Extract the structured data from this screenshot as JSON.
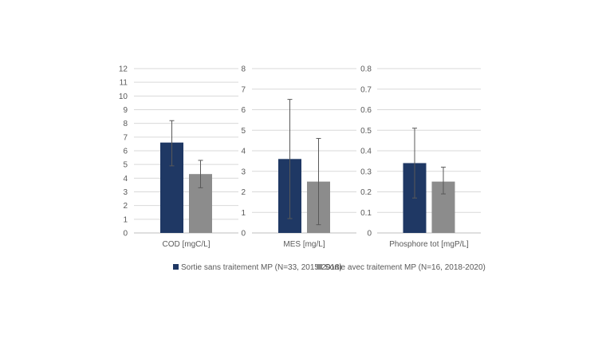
{
  "legend": {
    "position": "bottom",
    "items": [
      {
        "label": "Sortie sans traitement MP (N=33, 2015-2018)",
        "color": "#1f3864"
      },
      {
        "label": "Sortie avec traitement MP (N=16, 2018-2020)",
        "color": "#8c8c8c"
      }
    ]
  },
  "chart_data": [
    {
      "type": "bar",
      "xlabel": "COD [mgC/L]",
      "ylim": [
        0,
        12
      ],
      "yticks": [
        0,
        1,
        2,
        3,
        4,
        5,
        6,
        7,
        8,
        9,
        10,
        11,
        12
      ],
      "ytick_labels": [
        "0",
        "1",
        "2",
        "3",
        "4",
        "5",
        "6",
        "7",
        "8",
        "9",
        "10",
        "11",
        "12"
      ],
      "grid": true,
      "series": [
        {
          "name": "Sortie sans traitement MP (N=33, 2015-2018)",
          "value": 6.6,
          "error_low": 4.9,
          "error_high": 8.2,
          "color": "#1f3864"
        },
        {
          "name": "Sortie avec traitement MP (N=16, 2018-2020)",
          "value": 4.3,
          "error_low": 3.3,
          "error_high": 5.3,
          "color": "#8c8c8c"
        }
      ]
    },
    {
      "type": "bar",
      "xlabel": "MES [mg/L]",
      "ylim": [
        0,
        8
      ],
      "yticks": [
        0,
        1,
        2,
        3,
        4,
        5,
        6,
        7,
        8
      ],
      "ytick_labels": [
        "0",
        "1",
        "2",
        "3",
        "4",
        "5",
        "6",
        "7",
        "8"
      ],
      "grid": true,
      "series": [
        {
          "name": "Sortie sans traitement MP (N=33, 2015-2018)",
          "value": 3.6,
          "error_low": 0.7,
          "error_high": 6.5,
          "color": "#1f3864"
        },
        {
          "name": "Sortie avec traitement MP (N=16, 2018-2020)",
          "value": 2.5,
          "error_low": 0.4,
          "error_high": 4.6,
          "color": "#8c8c8c"
        }
      ]
    },
    {
      "type": "bar",
      "xlabel": "Phosphore tot [mgP/L]",
      "ylim": [
        0,
        0.8
      ],
      "yticks": [
        0,
        0.1,
        0.2,
        0.3,
        0.4,
        0.5,
        0.6,
        0.7,
        0.8
      ],
      "ytick_labels": [
        "0",
        "0.1",
        "0.2",
        "0.3",
        "0.4",
        "0.5",
        "0.6",
        "0.7",
        "0.8"
      ],
      "grid": true,
      "series": [
        {
          "name": "Sortie sans traitement MP (N=33, 2015-2018)",
          "value": 0.34,
          "error_low": 0.17,
          "error_high": 0.51,
          "color": "#1f3864"
        },
        {
          "name": "Sortie avec traitement MP (N=16, 2018-2020)",
          "value": 0.25,
          "error_low": 0.19,
          "error_high": 0.32,
          "color": "#8c8c8c"
        }
      ]
    }
  ]
}
